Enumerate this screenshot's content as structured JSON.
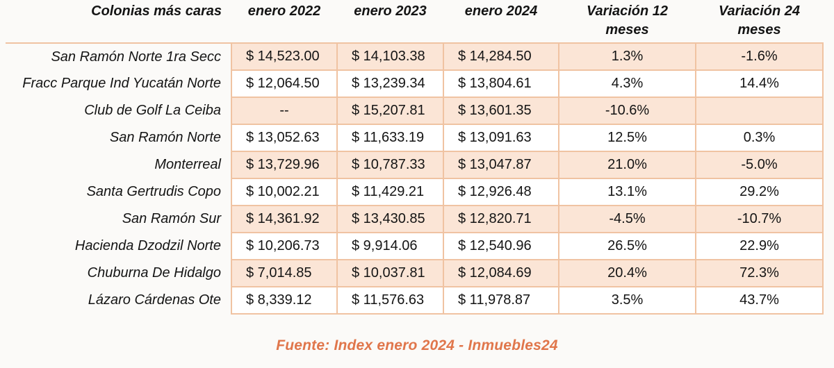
{
  "chart_data": {
    "type": "table",
    "title": "Colonias más caras",
    "columns": [
      "Colonias más caras",
      "enero 2022",
      "enero 2023",
      "enero 2024",
      "Variación 12 meses",
      "Variación 24 meses"
    ],
    "header_lines": [
      [
        "Colonias más caras"
      ],
      [
        "enero 2022"
      ],
      [
        "enero 2023"
      ],
      [
        "enero 2024"
      ],
      [
        "Variación 12",
        "meses"
      ],
      [
        "Variación 24",
        "meses"
      ]
    ],
    "rows": [
      [
        "San Ramón Norte 1ra Secc",
        "$ 14,523.00",
        "$ 14,103.38",
        "$ 14,284.50",
        "1.3%",
        "-1.6%"
      ],
      [
        "Fracc Parque Ind Yucatán Norte",
        "$ 12,064.50",
        "$ 13,239.34",
        "$ 13,804.61",
        "4.3%",
        "14.4%"
      ],
      [
        "Club de Golf La Ceiba",
        "--",
        "$ 15,207.81",
        "$ 13,601.35",
        "-10.6%",
        ""
      ],
      [
        "San Ramón Norte",
        "$ 13,052.63",
        "$ 11,633.19",
        "$ 13,091.63",
        "12.5%",
        "0.3%"
      ],
      [
        "Monterreal",
        "$ 13,729.96",
        "$ 10,787.33",
        "$ 13,047.87",
        "21.0%",
        "-5.0%"
      ],
      [
        "Santa Gertrudis Copo",
        "$ 10,002.21",
        "$ 11,429.21",
        "$ 12,926.48",
        "13.1%",
        "29.2%"
      ],
      [
        "San Ramón Sur",
        "$ 14,361.92",
        "$ 13,430.85",
        "$ 12,820.71",
        "-4.5%",
        "-10.7%"
      ],
      [
        "Hacienda Dzodzil Norte",
        "$ 10,206.73",
        "$ 9,914.06",
        "$ 12,540.96",
        "26.5%",
        "22.9%"
      ],
      [
        "Chuburna De Hidalgo",
        "$ 7,014.85",
        "$ 10,037.81",
        "$ 12,084.69",
        "20.4%",
        "72.3%"
      ],
      [
        "Lázaro Cárdenas Ote",
        "$ 8,339.12",
        "$ 11,576.63",
        "$ 11,978.87",
        "3.5%",
        "43.7%"
      ]
    ],
    "source": "Fuente: Index enero 2024 - Inmuebles24"
  },
  "colors": {
    "row_fill": "#fbe5d6",
    "cell_border": "#f0c3a2",
    "source_text": "#e0764b",
    "page_background": "#fbfaf8",
    "text": "#141414"
  }
}
